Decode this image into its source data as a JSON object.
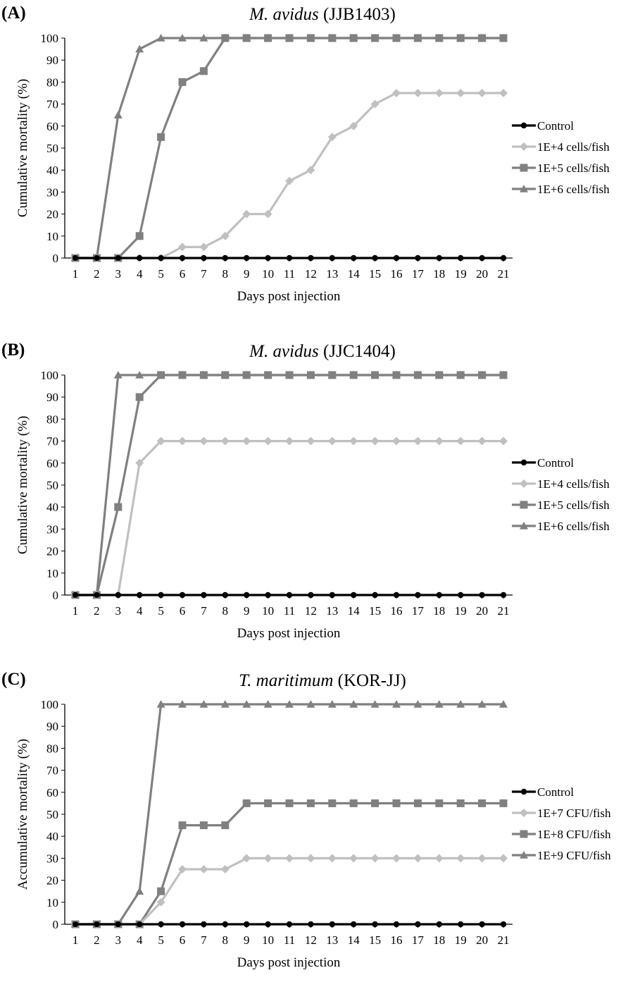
{
  "chart_data": [
    {
      "type": "line",
      "panel_letter": "(A)",
      "title_italic": "M. avidus",
      "title_rest": " (JJB1403)",
      "xlabel": "Days post injection",
      "ylabel": "Cumulative mortality (%)",
      "ylim": [
        0,
        100
      ],
      "yticks": [
        0,
        10,
        20,
        30,
        40,
        50,
        60,
        70,
        80,
        90,
        100
      ],
      "x": [
        1,
        2,
        3,
        4,
        5,
        6,
        7,
        8,
        9,
        10,
        11,
        12,
        13,
        14,
        15,
        16,
        17,
        18,
        19,
        20,
        21
      ],
      "legend_position": "right",
      "series": [
        {
          "name": "Control",
          "marker": "circle",
          "color": "#000000",
          "values": [
            0,
            0,
            0,
            0,
            0,
            0,
            0,
            0,
            0,
            0,
            0,
            0,
            0,
            0,
            0,
            0,
            0,
            0,
            0,
            0,
            0
          ]
        },
        {
          "name": "1E+4 cells/fish",
          "marker": "diamond",
          "color": "#c0c0c0",
          "values": [
            0,
            0,
            0,
            0,
            0,
            5,
            5,
            10,
            20,
            20,
            35,
            40,
            55,
            60,
            70,
            75,
            75,
            75,
            75,
            75,
            75
          ]
        },
        {
          "name": "1E+5 cells/fish",
          "marker": "square",
          "color": "#808080",
          "values": [
            0,
            0,
            0,
            10,
            55,
            80,
            85,
            100,
            100,
            100,
            100,
            100,
            100,
            100,
            100,
            100,
            100,
            100,
            100,
            100,
            100
          ]
        },
        {
          "name": "1E+6 cells/fish",
          "marker": "triangle",
          "color": "#808080",
          "values": [
            0,
            0,
            65,
            95,
            100,
            100,
            100,
            100,
            100,
            100,
            100,
            100,
            100,
            100,
            100,
            100,
            100,
            100,
            100,
            100,
            100
          ]
        }
      ]
    },
    {
      "type": "line",
      "panel_letter": "(B)",
      "title_italic": "M. avidus",
      "title_rest": " (JJC1404)",
      "xlabel": "Days post injection",
      "ylabel": "Cumulative mortality (%)",
      "ylim": [
        0,
        100
      ],
      "yticks": [
        0,
        10,
        20,
        30,
        40,
        50,
        60,
        70,
        80,
        90,
        100
      ],
      "x": [
        1,
        2,
        3,
        4,
        5,
        6,
        7,
        8,
        9,
        10,
        11,
        12,
        13,
        14,
        15,
        16,
        17,
        18,
        19,
        20,
        21
      ],
      "legend_position": "right",
      "series": [
        {
          "name": "Control",
          "marker": "circle",
          "color": "#000000",
          "values": [
            0,
            0,
            0,
            0,
            0,
            0,
            0,
            0,
            0,
            0,
            0,
            0,
            0,
            0,
            0,
            0,
            0,
            0,
            0,
            0,
            0
          ]
        },
        {
          "name": "1E+4 cells/fish",
          "marker": "diamond",
          "color": "#c0c0c0",
          "values": [
            0,
            0,
            0,
            60,
            70,
            70,
            70,
            70,
            70,
            70,
            70,
            70,
            70,
            70,
            70,
            70,
            70,
            70,
            70,
            70,
            70
          ]
        },
        {
          "name": "1E+5 cells/fish",
          "marker": "square",
          "color": "#808080",
          "values": [
            0,
            0,
            40,
            90,
            100,
            100,
            100,
            100,
            100,
            100,
            100,
            100,
            100,
            100,
            100,
            100,
            100,
            100,
            100,
            100,
            100
          ]
        },
        {
          "name": "1E+6 cells/fish",
          "marker": "triangle",
          "color": "#808080",
          "values": [
            0,
            0,
            100,
            100,
            100,
            100,
            100,
            100,
            100,
            100,
            100,
            100,
            100,
            100,
            100,
            100,
            100,
            100,
            100,
            100,
            100
          ]
        }
      ]
    },
    {
      "type": "line",
      "panel_letter": "(C)",
      "title_italic": "T. maritimum",
      "title_rest": " (KOR-JJ)",
      "xlabel": "Days post injection",
      "ylabel": "Accumulative mortality (%)",
      "ylim": [
        0,
        100
      ],
      "yticks": [
        0,
        10,
        20,
        30,
        40,
        50,
        60,
        70,
        80,
        90,
        100
      ],
      "x": [
        1,
        2,
        3,
        4,
        5,
        6,
        7,
        8,
        9,
        10,
        11,
        12,
        13,
        14,
        15,
        16,
        17,
        18,
        19,
        20,
        21
      ],
      "legend_position": "right",
      "series": [
        {
          "name": "Control",
          "marker": "circle",
          "color": "#000000",
          "values": [
            0,
            0,
            0,
            0,
            0,
            0,
            0,
            0,
            0,
            0,
            0,
            0,
            0,
            0,
            0,
            0,
            0,
            0,
            0,
            0,
            0
          ]
        },
        {
          "name": "1E+7 CFU/fish",
          "marker": "diamond",
          "color": "#c0c0c0",
          "values": [
            0,
            0,
            0,
            0,
            10,
            25,
            25,
            25,
            30,
            30,
            30,
            30,
            30,
            30,
            30,
            30,
            30,
            30,
            30,
            30,
            30
          ]
        },
        {
          "name": "1E+8 CFU/fish",
          "marker": "square",
          "color": "#808080",
          "values": [
            0,
            0,
            0,
            0,
            15,
            45,
            45,
            45,
            55,
            55,
            55,
            55,
            55,
            55,
            55,
            55,
            55,
            55,
            55,
            55,
            55
          ]
        },
        {
          "name": "1E+9 CFU/fish",
          "marker": "triangle",
          "color": "#808080",
          "values": [
            0,
            0,
            0,
            15,
            100,
            100,
            100,
            100,
            100,
            100,
            100,
            100,
            100,
            100,
            100,
            100,
            100,
            100,
            100,
            100,
            100
          ]
        }
      ]
    }
  ]
}
